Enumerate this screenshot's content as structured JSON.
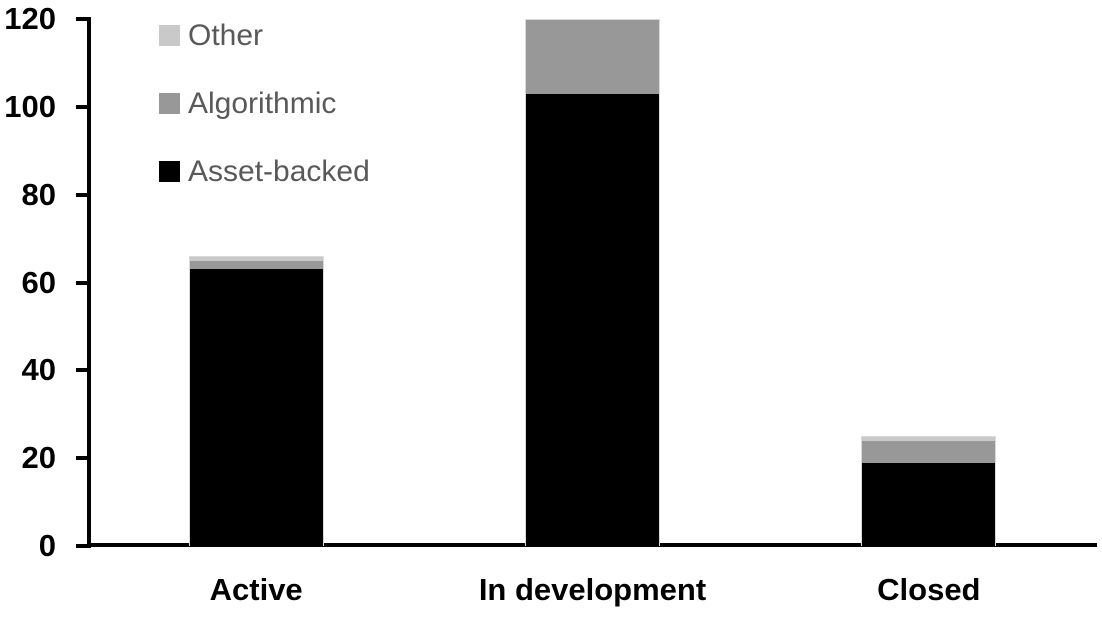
{
  "chart_data": {
    "type": "bar",
    "stacked": true,
    "title": "",
    "xlabel": "",
    "ylabel": "",
    "categories": [
      "Active",
      "In development",
      "Closed"
    ],
    "series": [
      {
        "name": "Asset-backed",
        "color": "#000000",
        "values": [
          63,
          103,
          19
        ]
      },
      {
        "name": "Algorithmic",
        "color": "#989898",
        "values": [
          2,
          17,
          5
        ]
      },
      {
        "name": "Other",
        "color": "#c9c9c9",
        "values": [
          1,
          0,
          1
        ]
      }
    ],
    "totals": [
      66,
      120,
      25
    ],
    "ylim": [
      0,
      120
    ],
    "yticks": [
      0,
      20,
      40,
      60,
      80,
      100,
      120
    ],
    "grid": false,
    "legend_position": "top-left",
    "legend_order": [
      "Other",
      "Algorithmic",
      "Asset-backed"
    ]
  },
  "styles": {
    "background": "#ffffff",
    "axis_color": "#000000",
    "axis_label_color": "#000000",
    "legend_text_color": "#595959",
    "bar_border_color": "#d9d9d9"
  }
}
